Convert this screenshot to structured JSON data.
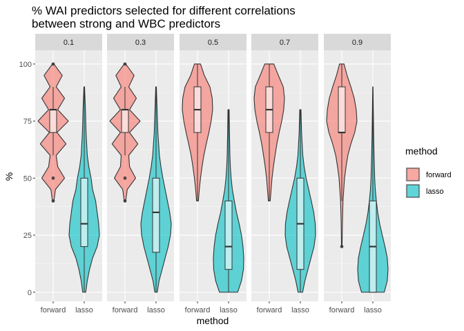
{
  "chart_data": {
    "type": "violin",
    "title": "% WAI predictors selected for different correlations\n between strong and WBC predictors",
    "xlabel": "method",
    "ylabel": "%",
    "ylim": [
      -4,
      106
    ],
    "yticks": [
      0,
      25,
      50,
      75,
      100
    ],
    "categories": [
      "forward",
      "lasso"
    ],
    "legend": {
      "title": "method",
      "position": "right",
      "entries": [
        "forward",
        "lasso"
      ]
    },
    "colors": {
      "forward": "#F8766D",
      "lasso": "#00BFC4",
      "panel_bg": "#EBEBEB",
      "strip_bg": "#D9D9D9"
    },
    "facets": [
      {
        "label": "0.1",
        "series": [
          {
            "name": "forward",
            "density": [
              [
                40,
                0.05
              ],
              [
                45,
                0.15
              ],
              [
                50,
                0.75
              ],
              [
                55,
                0.3
              ],
              [
                60,
                0.2
              ],
              [
                65,
                0.85
              ],
              [
                70,
                0.25
              ],
              [
                75,
                1.0
              ],
              [
                80,
                0.3
              ],
              [
                85,
                0.75
              ],
              [
                90,
                0.2
              ],
              [
                95,
                0.6
              ],
              [
                100,
                0.05
              ]
            ],
            "box": {
              "min": 60,
              "q1": 70,
              "median": 80,
              "q3": 80,
              "max": 90
            },
            "outliers": [
              50,
              100,
              40
            ]
          },
          {
            "name": "lasso",
            "density": [
              [
                0,
                0.1
              ],
              [
                5,
                0.2
              ],
              [
                10,
                0.35
              ],
              [
                15,
                0.55
              ],
              [
                20,
                0.85
              ],
              [
                25,
                1.0
              ],
              [
                30,
                0.95
              ],
              [
                35,
                0.85
              ],
              [
                40,
                0.75
              ],
              [
                45,
                0.55
              ],
              [
                50,
                0.45
              ],
              [
                55,
                0.3
              ],
              [
                60,
                0.2
              ],
              [
                70,
                0.12
              ],
              [
                80,
                0.08
              ],
              [
                90,
                0.02
              ]
            ],
            "box": {
              "min": 0,
              "q1": 20,
              "median": 30,
              "q3": 50,
              "max": 90
            },
            "outliers": []
          }
        ]
      },
      {
        "label": "0.3",
        "series": [
          {
            "name": "forward",
            "density": [
              [
                40,
                0.05
              ],
              [
                45,
                0.15
              ],
              [
                50,
                0.7
              ],
              [
                55,
                0.3
              ],
              [
                60,
                0.25
              ],
              [
                65,
                0.85
              ],
              [
                70,
                0.3
              ],
              [
                75,
                1.0
              ],
              [
                80,
                0.3
              ],
              [
                85,
                0.75
              ],
              [
                90,
                0.25
              ],
              [
                95,
                0.6
              ],
              [
                100,
                0.05
              ]
            ],
            "box": {
              "min": 60,
              "q1": 70,
              "median": 80,
              "q3": 80,
              "max": 90
            },
            "outliers": [
              50,
              100,
              40
            ]
          },
          {
            "name": "lasso",
            "density": [
              [
                0,
                0.08
              ],
              [
                5,
                0.2
              ],
              [
                10,
                0.4
              ],
              [
                15,
                0.6
              ],
              [
                20,
                0.8
              ],
              [
                25,
                0.95
              ],
              [
                30,
                1.0
              ],
              [
                35,
                0.9
              ],
              [
                40,
                0.75
              ],
              [
                45,
                0.6
              ],
              [
                50,
                0.45
              ],
              [
                55,
                0.32
              ],
              [
                60,
                0.22
              ],
              [
                70,
                0.12
              ],
              [
                80,
                0.07
              ],
              [
                90,
                0.02
              ]
            ],
            "box": {
              "min": 0,
              "q1": 17.5,
              "median": 35,
              "q3": 50,
              "max": 90
            },
            "outliers": []
          }
        ]
      },
      {
        "label": "0.5",
        "series": [
          {
            "name": "forward",
            "density": [
              [
                40,
                0.06
              ],
              [
                45,
                0.12
              ],
              [
                50,
                0.2
              ],
              [
                55,
                0.3
              ],
              [
                60,
                0.42
              ],
              [
                65,
                0.58
              ],
              [
                70,
                0.75
              ],
              [
                75,
                0.9
              ],
              [
                80,
                1.0
              ],
              [
                85,
                0.97
              ],
              [
                90,
                0.82
              ],
              [
                95,
                0.45
              ],
              [
                100,
                0.2
              ]
            ],
            "box": {
              "min": 40,
              "q1": 70,
              "median": 80,
              "q3": 90,
              "max": 100
            },
            "outliers": []
          },
          {
            "name": "lasso",
            "density": [
              [
                0,
                0.6
              ],
              [
                5,
                0.85
              ],
              [
                10,
                0.98
              ],
              [
                15,
                1.0
              ],
              [
                20,
                0.95
              ],
              [
                25,
                0.85
              ],
              [
                30,
                0.7
              ],
              [
                35,
                0.52
              ],
              [
                40,
                0.38
              ],
              [
                45,
                0.25
              ],
              [
                50,
                0.17
              ],
              [
                55,
                0.12
              ],
              [
                60,
                0.09
              ],
              [
                70,
                0.06
              ],
              [
                80,
                0.04
              ]
            ],
            "box": {
              "min": 0,
              "q1": 10,
              "median": 20,
              "q3": 40,
              "max": 80
            },
            "outliers": []
          }
        ]
      },
      {
        "label": "0.7",
        "series": [
          {
            "name": "forward",
            "density": [
              [
                40,
                0.06
              ],
              [
                45,
                0.12
              ],
              [
                50,
                0.18
              ],
              [
                55,
                0.27
              ],
              [
                60,
                0.38
              ],
              [
                65,
                0.5
              ],
              [
                70,
                0.65
              ],
              [
                75,
                0.82
              ],
              [
                80,
                0.95
              ],
              [
                85,
                1.0
              ],
              [
                90,
                0.92
              ],
              [
                95,
                0.6
              ],
              [
                100,
                0.3
              ]
            ],
            "box": {
              "min": 40,
              "q1": 70,
              "median": 80,
              "q3": 90,
              "max": 100
            },
            "outliers": []
          },
          {
            "name": "lasso",
            "density": [
              [
                0,
                0.15
              ],
              [
                5,
                0.3
              ],
              [
                10,
                0.5
              ],
              [
                15,
                0.7
              ],
              [
                20,
                0.9
              ],
              [
                25,
                1.0
              ],
              [
                30,
                0.98
              ],
              [
                35,
                0.88
              ],
              [
                40,
                0.72
              ],
              [
                45,
                0.55
              ],
              [
                50,
                0.38
              ],
              [
                55,
                0.25
              ],
              [
                60,
                0.16
              ],
              [
                70,
                0.08
              ],
              [
                80,
                0.04
              ]
            ],
            "box": {
              "min": 0,
              "q1": 10,
              "median": 30,
              "q3": 50,
              "max": 80
            },
            "outliers": []
          }
        ]
      },
      {
        "label": "0.9",
        "series": [
          {
            "name": "forward",
            "density": [
              [
                20,
                0.02
              ],
              [
                30,
                0.04
              ],
              [
                40,
                0.08
              ],
              [
                50,
                0.18
              ],
              [
                55,
                0.28
              ],
              [
                60,
                0.4
              ],
              [
                65,
                0.6
              ],
              [
                70,
                0.85
              ],
              [
                75,
                1.0
              ],
              [
                80,
                0.95
              ],
              [
                85,
                0.82
              ],
              [
                90,
                0.6
              ],
              [
                95,
                0.35
              ],
              [
                100,
                0.15
              ]
            ],
            "box": {
              "min": 40,
              "q1": 70,
              "median": 70,
              "q3": 90,
              "max": 100
            },
            "outliers": [
              20
            ]
          },
          {
            "name": "lasso",
            "density": [
              [
                0,
                0.75
              ],
              [
                5,
                0.95
              ],
              [
                10,
                1.0
              ],
              [
                15,
                0.95
              ],
              [
                20,
                0.8
              ],
              [
                25,
                0.62
              ],
              [
                30,
                0.45
              ],
              [
                35,
                0.32
              ],
              [
                40,
                0.23
              ],
              [
                45,
                0.16
              ],
              [
                50,
                0.12
              ],
              [
                55,
                0.1
              ],
              [
                60,
                0.08
              ],
              [
                70,
                0.05
              ],
              [
                80,
                0.03
              ],
              [
                90,
                0.01
              ]
            ],
            "box": {
              "min": 0,
              "q1": 0,
              "median": 20,
              "q3": 40,
              "max": 90
            },
            "outliers": []
          }
        ]
      }
    ]
  }
}
